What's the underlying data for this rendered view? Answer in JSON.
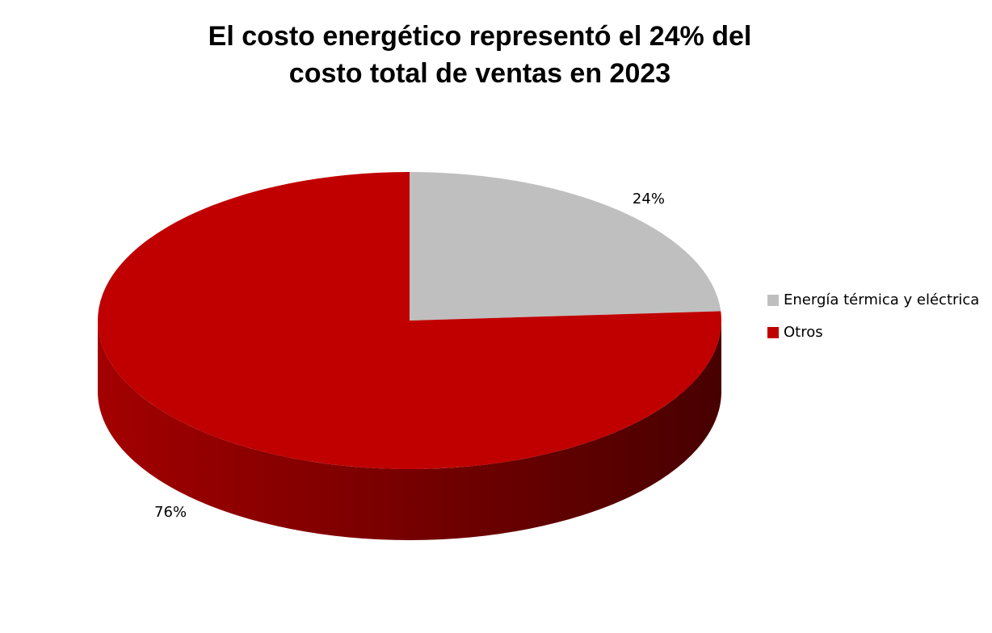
{
  "chart_data": {
    "type": "pie",
    "title": "El costo energético representó el 24% del costo total de ventas en 2023",
    "categories": [
      "Energía térmica y eléctrica",
      "Otros"
    ],
    "values": [
      24,
      76
    ],
    "value_labels": [
      "24%",
      "76%"
    ],
    "colors": [
      "#bfbfbf",
      "#c00000"
    ],
    "legend": "right"
  }
}
